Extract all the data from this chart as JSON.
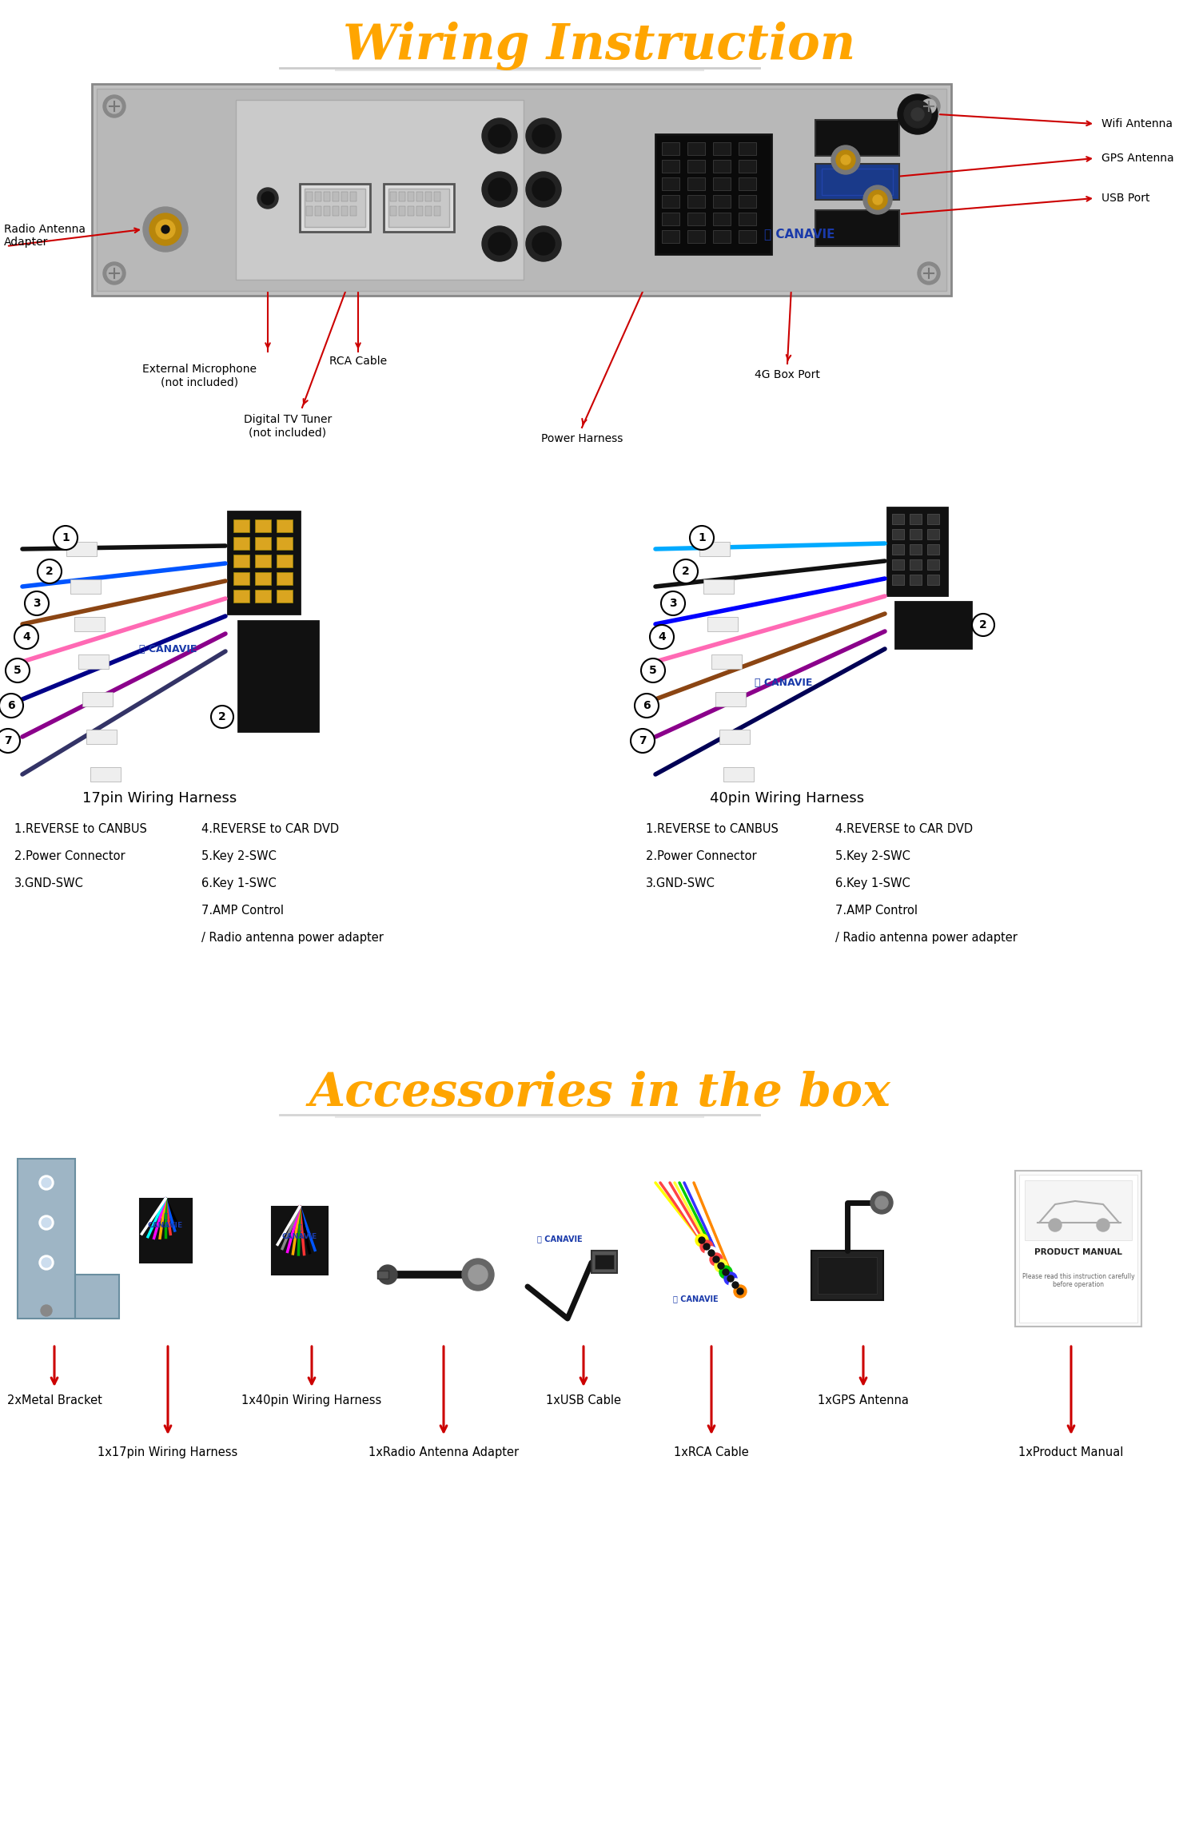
{
  "title1": "Wiring Instruction",
  "title2": "Accessories in the box",
  "title1_color": "#FFA500",
  "title2_color": "#FFA500",
  "bg_color": "#FFFFFF",
  "arrow_color": "#CC0000",
  "canavie_color": "#1a3aaa",
  "wifi_label": "Wifi Antenna",
  "gps_label": "GPS Antenna",
  "usb_label": "USB Port",
  "radio_ant_label": "Radio Antenna\nAdapter",
  "ext_mic_label": "External Microphone\n(not included)",
  "rca_label": "RCA Cable",
  "tv_label": "Digital TV Tuner\n(not included)",
  "power_label": "Power Harness",
  "box4g_label": "4G Box Port",
  "harness1_title": "17pin Wiring Harness",
  "harness2_title": "40pin Wiring Harness",
  "left_col1": [
    "1.REVERSE to CANBUS",
    "2.Power Connector",
    "3.GND-SWC"
  ],
  "left_col2": [
    "4.REVERSE to CAR DVD",
    "5.Key 2-SWC",
    "6.Key 1-SWC",
    "7.AMP Control",
    "/ Radio antenna power adapter"
  ],
  "acc_row1": [
    "2xMetal Bracket",
    "",
    "1x40pin Wiring Harness",
    "",
    "1xUSB Cable",
    "",
    "1xGPS Antenna",
    ""
  ],
  "acc_row2": [
    "",
    "1x17pin Wiring Harness",
    "",
    "1xRadio Antenna Adapter",
    "",
    "1xRCA Cable",
    "",
    "1xProduct Manual"
  ],
  "acc_x": [
    68,
    210,
    390,
    555,
    730,
    890,
    1080,
    1340
  ],
  "wire_colors_17": [
    "#111111",
    "#0055FF",
    "#8B4513",
    "#FF69B4",
    "#000088",
    "#8B008B",
    "#333366"
  ],
  "wire_colors_40": [
    "#00AAFF",
    "#111111",
    "#0000FF",
    "#FF69B4",
    "#8B4513",
    "#8B008B",
    "#000055"
  ]
}
